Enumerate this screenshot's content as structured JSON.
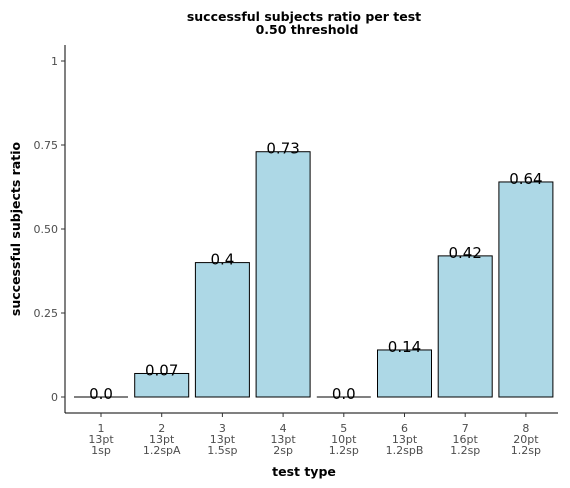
{
  "chart_data": {
    "type": "bar",
    "title": "successful subjects ratio per test",
    "subtitle": "0.50 threshold",
    "xlabel": "test type",
    "ylabel": "successful subjects ratio",
    "ylim": [
      0,
      1
    ],
    "yticks": [
      0,
      0.25,
      0.5,
      0.75,
      1
    ],
    "ytick_labels": [
      "0",
      "0.25",
      "0.50",
      "0.75",
      "1"
    ],
    "grid": false,
    "bar_color": "#add8e6",
    "bar_edge_color": "#000000",
    "categories": [
      [
        "1",
        "13pt",
        "1sp"
      ],
      [
        "2",
        "13pt",
        "1.2spA"
      ],
      [
        "3",
        "13pt",
        "1.5sp"
      ],
      [
        "4",
        "13pt",
        "2sp"
      ],
      [
        "5",
        "10pt",
        "1.2sp"
      ],
      [
        "6",
        "13pt",
        "1.2spB"
      ],
      [
        "7",
        "16pt",
        "1.2sp"
      ],
      [
        "8",
        "20pt",
        "1.2sp"
      ]
    ],
    "values": [
      0.0,
      0.07,
      0.4,
      0.73,
      0.0,
      0.14,
      0.42,
      0.64
    ],
    "data_labels": [
      "0.0",
      "0.07",
      "0.4",
      "0.73",
      "0.0",
      "0.14",
      "0.42",
      "0.64"
    ]
  }
}
